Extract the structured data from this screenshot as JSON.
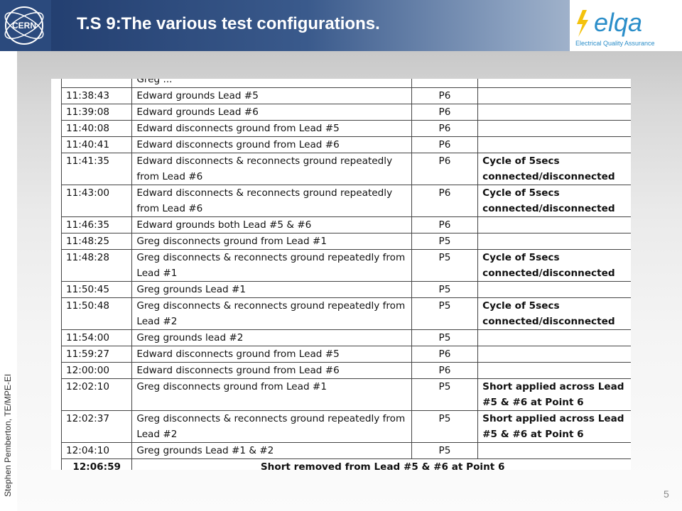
{
  "slide": {
    "title": "T.S 9:The various test configurations.",
    "author": "Stephen Pemberton, TE/MPE-EI",
    "page_number": "5"
  },
  "logos": {
    "cern_text": "CERN",
    "elqa_text": "elqa",
    "elqa_subtitle": "Electrical Quality Assurance"
  },
  "table": {
    "rows": [
      {
        "time": "",
        "action": "Greg ...",
        "point": "",
        "note": ""
      },
      {
        "time": "11:38:43",
        "action": "Edward grounds Lead #5",
        "point": "P6",
        "note": ""
      },
      {
        "time": "11:39:08",
        "action": "Edward grounds Lead #6",
        "point": "P6",
        "note": ""
      },
      {
        "time": "11:40:08",
        "action": "Edward  disconnects ground from Lead #5",
        "point": "P6",
        "note": ""
      },
      {
        "time": "11:40:41",
        "action": "Edward disconnects ground from  Lead #6",
        "point": "P6",
        "note": ""
      },
      {
        "time": "11:41:35",
        "action": "Edward disconnects & reconnects ground repeatedly from Lead #6",
        "point": "P6",
        "note": "Cycle of 5secs connected/disconnected"
      },
      {
        "time": "11:43:00",
        "action": "Edward disconnects & reconnects ground repeatedly from Lead #6",
        "point": "P6",
        "note": "Cycle of 5secs connected/disconnected"
      },
      {
        "time": "11:46:35",
        "action": "Edward grounds both Lead #5 & #6",
        "point": "P6",
        "note": ""
      },
      {
        "time": "11:48:25",
        "action": "Greg disconnects ground from Lead #1",
        "point": "P5",
        "note": ""
      },
      {
        "time": "11:48:28",
        "action": "Greg disconnects & reconnects ground repeatedly from Lead #1",
        "point": "P5",
        "note": "Cycle of 5secs connected/disconnected"
      },
      {
        "time": "11:50:45",
        "action": "Greg grounds Lead #1",
        "point": "P5",
        "note": ""
      },
      {
        "time": "11:50:48",
        "action": "Greg disconnects & reconnects ground repeatedly from Lead #2",
        "point": "P5",
        "note": "Cycle of 5secs connected/disconnected"
      },
      {
        "time": "11:54:00",
        "action": "Greg grounds lead #2",
        "point": "P5",
        "note": ""
      },
      {
        "time": "11:59:27",
        "action": "Edward  disconnects ground from Lead #5",
        "point": "P6",
        "note": ""
      },
      {
        "time": "12:00:00",
        "action": "Edward  disconnects ground from Lead #6",
        "point": "P6",
        "note": ""
      },
      {
        "time": "12:02:10",
        "action": "Greg disconnects ground from Lead #1",
        "point": "P5",
        "note": "Short applied across Lead #5 & #6 at Point 6"
      },
      {
        "time": "12:02:37",
        "action": "Greg disconnects & reconnects ground repeatedly from Lead #2",
        "point": "P5",
        "note": "Short applied across Lead #5 & #6 at Point 6"
      },
      {
        "time": "12:04:10",
        "action": "Greg grounds Lead #1 & #2",
        "point": "P5",
        "note": ""
      }
    ],
    "final_row": {
      "time": "12:06:59",
      "text": "Short removed from Lead #5 & #6 at Point 6"
    }
  }
}
